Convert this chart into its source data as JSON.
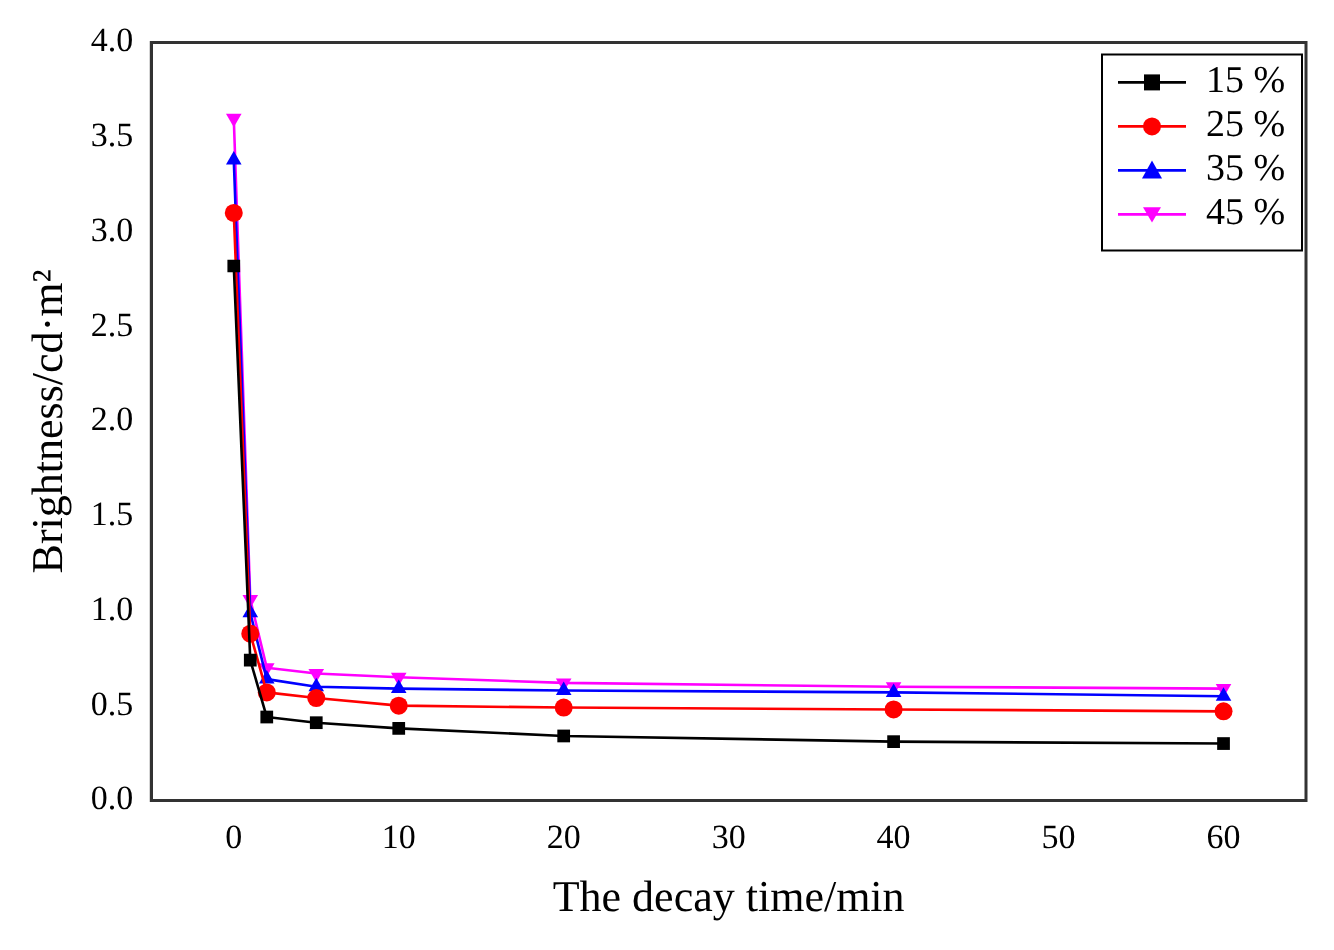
{
  "chart_data": {
    "type": "line",
    "xlabel": "The decay time/min",
    "ylabel": "Brightness/cd·m²",
    "x": [
      0,
      1,
      2,
      5,
      10,
      20,
      40,
      60
    ],
    "xlim": [
      -5,
      65
    ],
    "xticks": [
      0,
      10,
      20,
      30,
      40,
      50,
      60
    ],
    "ylim": [
      0,
      4
    ],
    "yticks": [
      {
        "value": 0,
        "label": "0.0"
      },
      {
        "value": 0.5,
        "label": "0.5"
      },
      {
        "value": 1,
        "label": "1.0"
      },
      {
        "value": 1.5,
        "label": "1.5"
      },
      {
        "value": 2,
        "label": "2.0"
      },
      {
        "value": 2.5,
        "label": "2.5"
      },
      {
        "value": 3,
        "label": "3.0"
      },
      {
        "value": 3.5,
        "label": "3.5"
      },
      {
        "value": 4,
        "label": "4.0"
      }
    ],
    "grid": false,
    "legend": "top right",
    "line_style": "solid",
    "series": [
      {
        "name": "15 %",
        "color": "#000000",
        "marker": "square",
        "values": [
          2.82,
          0.74,
          0.44,
          0.41,
          0.38,
          0.34,
          0.31,
          0.3
        ]
      },
      {
        "name": "25 %",
        "color": "#ff0000",
        "marker": "circle",
        "values": [
          3.1,
          0.88,
          0.57,
          0.54,
          0.5,
          0.49,
          0.48,
          0.47
        ]
      },
      {
        "name": "35 %",
        "color": "#0000ff",
        "marker": "triangle",
        "values": [
          3.38,
          0.99,
          0.64,
          0.6,
          0.59,
          0.58,
          0.57,
          0.55
        ]
      },
      {
        "name": "45 %",
        "color": "#ff00ff",
        "marker": "triangle-down",
        "values": [
          3.6,
          1.06,
          0.7,
          0.67,
          0.65,
          0.62,
          0.6,
          0.59
        ]
      }
    ]
  }
}
